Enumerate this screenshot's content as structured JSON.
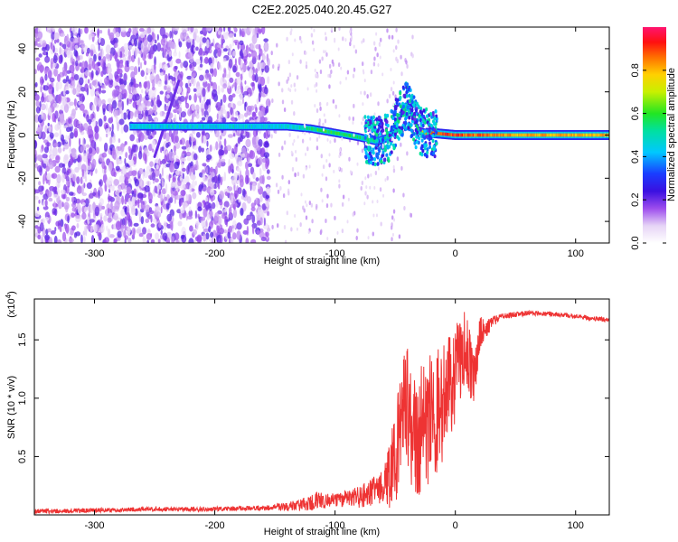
{
  "title": "C2E2.2025.040.20.45.G27",
  "chart_data": [
    {
      "type": "heatmap",
      "xlabel": "Height of straight line (km)",
      "ylabel": "Frequency (Hz)",
      "xlim": [
        -350,
        128
      ],
      "ylim": [
        -50,
        50
      ],
      "xticks": [
        -300,
        -200,
        -100,
        0,
        100
      ],
      "xtick_labels": [
        "-300",
        "-200",
        "-100",
        "0",
        "100"
      ],
      "yticks": [
        -40,
        -20,
        0,
        20,
        40
      ],
      "ytick_labels": [
        "-40",
        "-20",
        "0",
        "20",
        "40"
      ],
      "colorbar": {
        "label": "Normalized spectral amplitude",
        "range": [
          0,
          1
        ],
        "ticks": [
          0,
          0.2,
          0.4,
          0.6,
          0.8
        ],
        "tick_labels": [
          "0.0",
          "0.2",
          "0.4",
          "0.6",
          "0.8"
        ],
        "colormap": "rainbow (white → violet → blue → cyan → green → yellow → orange → red → magenta)"
      },
      "features": {
        "noise_region_km": [
          -350,
          -155
        ],
        "noise_level": 0.15,
        "signal_trace": {
          "description": "dominant spectral line along Frequency ~0 Hz",
          "x": [
            -270,
            -160,
            -140,
            -120,
            -100,
            -80,
            -65,
            -55,
            -50,
            -45,
            -40,
            -35,
            -30,
            -25,
            -20,
            0,
            50,
            128
          ],
          "frequency_hz": [
            4,
            4,
            4,
            3,
            1,
            -1,
            -3,
            -1,
            5,
            10,
            14,
            8,
            2,
            1,
            1,
            0,
            0,
            0
          ],
          "amplitude": [
            0.45,
            0.45,
            0.45,
            0.55,
            0.6,
            0.55,
            0.5,
            0.5,
            0.55,
            0.55,
            0.5,
            0.5,
            0.6,
            0.85,
            0.9,
            0.9,
            0.8,
            0.8
          ]
        },
        "diagonal_streak": {
          "from": [
            -250,
            -10
          ],
          "to": [
            -230,
            25
          ]
        }
      }
    },
    {
      "type": "line",
      "xlabel": "Height of straight line (km)",
      "ylabel": "SNR (10 * v/v)",
      "y_multiplier_label": "(x10",
      "y_multiplier_exp": "4",
      "y_multiplier_close": ")",
      "xlim": [
        -350,
        128
      ],
      "ylim": [
        0,
        1.85
      ],
      "xticks": [
        -300,
        -200,
        -100,
        0,
        100
      ],
      "xtick_labels": [
        "-300",
        "-200",
        "-100",
        "0",
        "100"
      ],
      "yticks": [
        0.5,
        1.0,
        1.5
      ],
      "ytick_labels": [
        "0.5",
        "1.0",
        "1.5"
      ],
      "series": [
        {
          "color": "#ee3333",
          "x": [
            -350,
            -300,
            -250,
            -200,
            -160,
            -130,
            -115,
            -105,
            -100,
            -90,
            -80,
            -70,
            -60,
            -55,
            -50,
            -45,
            -40,
            -35,
            -30,
            -25,
            -20,
            -15,
            -10,
            -5,
            0,
            5,
            10,
            15,
            20,
            25,
            30,
            40,
            60,
            80,
            100,
            128
          ],
          "values": [
            0.03,
            0.04,
            0.05,
            0.05,
            0.06,
            0.08,
            0.12,
            0.12,
            0.13,
            0.14,
            0.15,
            0.2,
            0.25,
            0.35,
            0.45,
            0.75,
            0.95,
            0.65,
            0.7,
            0.8,
            0.85,
            0.9,
            0.95,
            1.1,
            1.2,
            1.3,
            1.45,
            1.15,
            1.55,
            1.6,
            1.65,
            1.7,
            1.73,
            1.72,
            1.7,
            1.67
          ],
          "noise_band": [
            0.02,
            0.02,
            0.02,
            0.02,
            0.02,
            0.05,
            0.08,
            0.06,
            0.06,
            0.08,
            0.1,
            0.12,
            0.15,
            0.3,
            0.4,
            0.55,
            0.5,
            0.5,
            0.55,
            0.55,
            0.6,
            0.55,
            0.5,
            0.45,
            0.45,
            0.4,
            0.35,
            0.3,
            0.15,
            0.1,
            0.05,
            0.03,
            0.02,
            0.02,
            0.02,
            0.02
          ]
        }
      ]
    }
  ]
}
